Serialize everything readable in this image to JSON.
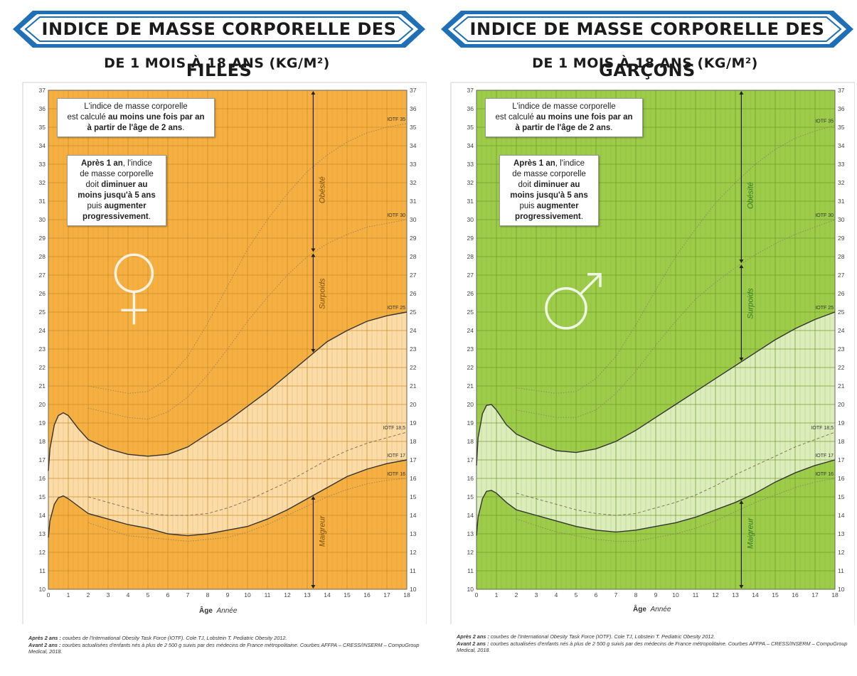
{
  "panels": [
    {
      "banner_title": "INDICE DE MASSE CORPORELLE DES FILLES",
      "subtitle": "DE 1 MOIS À 18 ANS (KG/M²)",
      "note1": {
        "text_a": "L'indice de masse corporelle",
        "text_b": "est calculé ",
        "bold_b": "au moins une fois par an",
        "bold_c": "à partir de l'âge de 2 ans",
        "text_c": "."
      },
      "note2": {
        "bold_a": "Après 1 an",
        "text_a": ", l'indice",
        "text_b": "de masse corporelle",
        "text_c": "doit ",
        "bold_c": "diminuer au",
        "bold_d": "moins jusqu'à 5 ans",
        "text_e": "puis ",
        "bold_e": "augmenter",
        "bold_f": "progressivement",
        "text_f": "."
      },
      "symbol": "female-symbol-icon",
      "zones": {
        "obesity": "Obésité",
        "overweight": "Surpoids",
        "thinness": "Maigreur"
      },
      "footnote": {
        "bold1": "Après 2 ans :",
        "text1": " courbes de l'International Obesity Task Force (IOTF). Cole TJ, Lobstein T. Pediatric Obesity 2012.",
        "bold2": "Avant 2 ans :",
        "text2": " courbes actualisées d'enfants nés à plus de 2 500 g suivis par des médecins de France métropolitaine. Courbes AFFPA – CRESS/INSERM – CompuGroup Medical, 2018."
      },
      "colors": {
        "banner_blue": "#1e6fb5",
        "bg": "#f5b041",
        "band": "#fbe3b8",
        "grid": "#c98a2a",
        "label": "#7a4f10"
      }
    },
    {
      "banner_title": "INDICE DE MASSE CORPORELLE DES GARÇONS",
      "subtitle": "DE 1 MOIS À 18 ANS (KG/M²)",
      "note1": {
        "text_a": "L'indice de masse corporelle",
        "text_b": "est calculé ",
        "bold_b": "au moins une fois par an",
        "bold_c": "à partir de l'âge de 2 ans",
        "text_c": "."
      },
      "note2": {
        "bold_a": "Après 1 an",
        "text_a": ", l'indice",
        "text_b": "de masse corporelle",
        "text_c": "doit ",
        "bold_c": "diminuer au",
        "bold_d": "moins jusqu'à 5 ans",
        "text_e": "puis ",
        "bold_e": "augmenter",
        "bold_f": "progressivement",
        "text_f": "."
      },
      "symbol": "male-symbol-icon",
      "zones": {
        "obesity": "Obésité",
        "overweight": "Surpoids",
        "thinness": "Maigreur"
      },
      "footnote": {
        "bold1": "Après 2 ans :",
        "text1": " courbes de l'International Obesity Task Force (IOTF). Cole TJ, Lobstein T. Pediatric Obesity 2012.",
        "bold2": "Avant 2 ans :",
        "text2": " courbes actualisées d'enfants nés à plus de 2 500 g suivis par des médecins de France métropolitaine. Courbes AFFPA – CRESS/INSERM – CompuGroup Medical, 2018."
      },
      "colors": {
        "banner_blue": "#1e6fb5",
        "bg": "#9ccc4a",
        "band": "#e6f2cf",
        "grid": "#6f9a2a",
        "label": "#2f7a2a"
      }
    }
  ],
  "chart_data": [
    {
      "type": "line",
      "xlabel": "Âge",
      "xunit": "Année",
      "xlim": [
        0,
        18
      ],
      "ylim": [
        10,
        37
      ],
      "xticks": [
        0,
        1,
        2,
        3,
        4,
        5,
        6,
        7,
        8,
        9,
        10,
        11,
        12,
        13,
        14,
        15,
        16,
        17,
        18
      ],
      "yticks": [
        10,
        11,
        12,
        13,
        14,
        15,
        16,
        17,
        18,
        19,
        20,
        21,
        22,
        23,
        24,
        25,
        26,
        27,
        28,
        29,
        30,
        31,
        32,
        33,
        34,
        35,
        36,
        37
      ],
      "grid": true,
      "series": [
        {
          "name": "IOTF 35",
          "style": "dotted",
          "x": [
            2,
            4,
            5,
            6,
            7,
            8,
            9,
            10,
            11,
            12,
            13,
            14,
            15,
            16,
            17,
            18
          ],
          "y": [
            21.0,
            20.6,
            20.7,
            21.4,
            22.6,
            24.4,
            26.4,
            28.4,
            30.0,
            31.4,
            32.6,
            33.5,
            34.2,
            34.7,
            35.0,
            35.2
          ]
        },
        {
          "name": "IOTF 30",
          "style": "dotted",
          "x": [
            2,
            4,
            5,
            6,
            7,
            8,
            9,
            10,
            11,
            12,
            13,
            14,
            15,
            16,
            17,
            18
          ],
          "y": [
            19.8,
            19.3,
            19.2,
            19.6,
            20.4,
            21.6,
            23.0,
            24.5,
            25.8,
            27.0,
            28.0,
            28.7,
            29.2,
            29.6,
            29.8,
            30.0
          ]
        },
        {
          "name": "IOTF 25",
          "style": "solid",
          "x": [
            0,
            0.08,
            0.3,
            0.5,
            0.75,
            1,
            1.5,
            2,
            3,
            4,
            5,
            6,
            7,
            8,
            9,
            10,
            11,
            12,
            13,
            14,
            15,
            16,
            17,
            18
          ],
          "y": [
            16.4,
            17.6,
            18.9,
            19.4,
            19.55,
            19.4,
            18.7,
            18.1,
            17.6,
            17.3,
            17.2,
            17.3,
            17.7,
            18.4,
            19.1,
            19.9,
            20.7,
            21.6,
            22.5,
            23.4,
            24.0,
            24.5,
            24.8,
            25.0
          ]
        },
        {
          "name": "IOTF 18,5",
          "style": "dashed",
          "x": [
            2,
            4,
            5,
            6,
            7,
            8,
            9,
            10,
            11,
            12,
            13,
            14,
            15,
            16,
            17,
            18
          ],
          "y": [
            15.0,
            14.4,
            14.1,
            14.0,
            14.0,
            14.1,
            14.4,
            14.8,
            15.3,
            15.8,
            16.4,
            17.0,
            17.5,
            17.9,
            18.2,
            18.5
          ]
        },
        {
          "name": "IOTF 17",
          "style": "solid",
          "x": [
            0,
            0.08,
            0.3,
            0.5,
            0.75,
            1,
            1.5,
            2,
            3,
            4,
            5,
            6,
            7,
            8,
            9,
            10,
            11,
            12,
            13,
            14,
            15,
            16,
            17,
            18
          ],
          "y": [
            12.8,
            13.7,
            14.6,
            14.95,
            15.05,
            14.9,
            14.5,
            14.1,
            13.8,
            13.5,
            13.3,
            13.0,
            12.9,
            13.0,
            13.2,
            13.4,
            13.8,
            14.3,
            14.9,
            15.5,
            16.1,
            16.5,
            16.8,
            17.0
          ]
        },
        {
          "name": "IOTF 16",
          "style": "dotted",
          "x": [
            2,
            4,
            5,
            6,
            7,
            8,
            9,
            10,
            11,
            12,
            13,
            14,
            15,
            16,
            17,
            18
          ],
          "y": [
            13.6,
            12.9,
            12.8,
            12.7,
            12.6,
            12.7,
            12.8,
            13.1,
            13.5,
            14.0,
            14.5,
            15.0,
            15.4,
            15.7,
            15.9,
            16.0
          ]
        }
      ]
    },
    {
      "type": "line",
      "xlabel": "Âge",
      "xunit": "Année",
      "xlim": [
        0,
        18
      ],
      "ylim": [
        10,
        37
      ],
      "xticks": [
        0,
        1,
        2,
        3,
        4,
        5,
        6,
        7,
        8,
        9,
        10,
        11,
        12,
        13,
        14,
        15,
        16,
        17,
        18
      ],
      "yticks": [
        10,
        11,
        12,
        13,
        14,
        15,
        16,
        17,
        18,
        19,
        20,
        21,
        22,
        23,
        24,
        25,
        26,
        27,
        28,
        29,
        30,
        31,
        32,
        33,
        34,
        35,
        36,
        37
      ],
      "grid": true,
      "series": [
        {
          "name": "IOTF 35",
          "style": "dotted",
          "x": [
            2,
            4,
            5,
            6,
            7,
            8,
            9,
            10,
            11,
            12,
            13,
            14,
            15,
            16,
            17,
            18
          ],
          "y": [
            20.9,
            20.6,
            20.7,
            21.4,
            22.6,
            24.3,
            26.2,
            28.0,
            29.5,
            30.9,
            32.0,
            33.0,
            33.8,
            34.4,
            34.8,
            35.1
          ]
        },
        {
          "name": "IOTF 30",
          "style": "dotted",
          "x": [
            2,
            4,
            5,
            6,
            7,
            8,
            9,
            10,
            11,
            12,
            13,
            14,
            15,
            16,
            17,
            18
          ],
          "y": [
            19.7,
            19.3,
            19.3,
            19.7,
            20.6,
            21.8,
            23.2,
            24.5,
            25.7,
            26.6,
            27.4,
            28.1,
            28.7,
            29.2,
            29.6,
            30.0
          ]
        },
        {
          "name": "IOTF 25",
          "style": "solid",
          "x": [
            0,
            0.08,
            0.3,
            0.5,
            0.75,
            1,
            1.5,
            2,
            3,
            4,
            5,
            6,
            7,
            8,
            9,
            10,
            11,
            12,
            13,
            14,
            15,
            16,
            17,
            18
          ],
          "y": [
            16.7,
            18.2,
            19.5,
            19.95,
            20.0,
            19.7,
            18.9,
            18.4,
            17.9,
            17.5,
            17.4,
            17.6,
            18.0,
            18.6,
            19.3,
            20.0,
            20.7,
            21.4,
            22.1,
            22.8,
            23.5,
            24.1,
            24.6,
            25.0
          ]
        },
        {
          "name": "IOTF 18,5",
          "style": "dashed",
          "x": [
            2,
            4,
            5,
            6,
            7,
            8,
            9,
            10,
            11,
            12,
            13,
            14,
            15,
            16,
            17,
            18
          ],
          "y": [
            15.2,
            14.6,
            14.3,
            14.1,
            14.0,
            14.1,
            14.4,
            14.7,
            15.1,
            15.6,
            16.2,
            16.7,
            17.2,
            17.7,
            18.1,
            18.5
          ]
        },
        {
          "name": "IOTF 17",
          "style": "solid",
          "x": [
            0,
            0.08,
            0.3,
            0.5,
            0.75,
            1,
            1.5,
            2,
            3,
            4,
            5,
            6,
            7,
            8,
            9,
            10,
            11,
            12,
            13,
            14,
            15,
            16,
            17,
            18
          ],
          "y": [
            12.9,
            13.9,
            14.9,
            15.3,
            15.35,
            15.2,
            14.7,
            14.3,
            14.0,
            13.7,
            13.4,
            13.2,
            13.1,
            13.2,
            13.4,
            13.6,
            13.9,
            14.3,
            14.7,
            15.2,
            15.8,
            16.3,
            16.7,
            17.0
          ]
        },
        {
          "name": "IOTF 16",
          "style": "dotted",
          "x": [
            2,
            4,
            5,
            6,
            7,
            8,
            9,
            10,
            11,
            12,
            13,
            14,
            15,
            16,
            17,
            18
          ],
          "y": [
            13.8,
            13.1,
            12.9,
            12.7,
            12.6,
            12.6,
            12.8,
            13.0,
            13.3,
            13.7,
            14.2,
            14.7,
            15.1,
            15.5,
            15.8,
            16.0
          ]
        }
      ]
    }
  ]
}
